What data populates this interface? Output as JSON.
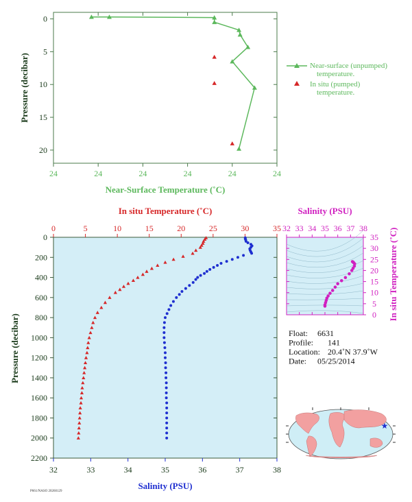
{
  "colors": {
    "green": "#5cb85c",
    "red": "#d62728",
    "blue": "#1f2fd0",
    "magenta": "#d020c0",
    "axis_dark": "#1a3a1a",
    "panel_bg": "#d4eef7",
    "land": "#f2a0a0",
    "ocean": "#cfeef6"
  },
  "footer_text": "P661/NASO 20260129",
  "chart_data": [
    {
      "id": "near-surface",
      "type": "line",
      "xlabel": "Near-Surface Temperature (˚C)",
      "ylabel": "Pressure (decibar)",
      "xticks": [
        "24",
        "24",
        "24",
        "24",
        "24",
        "24"
      ],
      "xlim": [
        23.4,
        24.4
      ],
      "ylim": [
        22,
        -1
      ],
      "yticks": [
        0,
        5,
        10,
        15,
        20
      ],
      "grid": false,
      "legend_position": "right",
      "series": [
        {
          "name": "Near-surface (unpumped) temperature.",
          "marker": "triangle",
          "color": "#5cb85c",
          "x": [
            23.57,
            23.65,
            24.12,
            24.12,
            24.23,
            24.235,
            24.27,
            24.2,
            24.3,
            24.23
          ],
          "y": [
            -0.3,
            -0.3,
            -0.2,
            0.5,
            1.7,
            2.4,
            4.3,
            6.5,
            10.5,
            19.8
          ]
        },
        {
          "name": "In situ (pumped) temperature.",
          "marker": "triangle",
          "color": "#d62728",
          "x": [
            24.12,
            24.12,
            24.2
          ],
          "y": [
            5.8,
            9.8,
            19.0
          ]
        }
      ]
    },
    {
      "id": "profile",
      "type": "scatter",
      "ylabel": "Pressure (decibar)",
      "ylim": [
        2200,
        0
      ],
      "yticks": [
        0,
        200,
        400,
        600,
        800,
        1000,
        1200,
        1400,
        1600,
        1800,
        2000,
        2200
      ],
      "top_xlabel": "In situ Temperature (˚C)",
      "top_xlim": [
        0,
        35
      ],
      "top_xticks": [
        0,
        5,
        10,
        15,
        20,
        25,
        30,
        35
      ],
      "bottom_xlabel": "Salinity (PSU)",
      "bottom_xlim": [
        32,
        38
      ],
      "bottom_xticks": [
        32,
        33,
        34,
        35,
        36,
        37,
        38
      ],
      "grid": false,
      "series": [
        {
          "name": "In situ Temperature (˚C)",
          "marker": "triangle",
          "color": "#d62728",
          "pressure": [
            5,
            20,
            40,
            60,
            80,
            100,
            130,
            160,
            190,
            220,
            250,
            280,
            310,
            340,
            370,
            400,
            430,
            460,
            490,
            520,
            550,
            600,
            650,
            700,
            750,
            800,
            850,
            900,
            950,
            1000,
            1050,
            1100,
            1150,
            1200,
            1250,
            1300,
            1350,
            1400,
            1450,
            1500,
            1550,
            1600,
            1650,
            1700,
            1750,
            1800,
            1850,
            1900,
            1950,
            2000
          ],
          "values": [
            23.9,
            23.7,
            23.5,
            23.4,
            23.2,
            23.0,
            22.3,
            21.8,
            20.3,
            18.8,
            17.5,
            16.3,
            15.4,
            14.6,
            14.0,
            13.2,
            12.5,
            11.7,
            11.0,
            10.4,
            9.7,
            8.8,
            8.1,
            7.5,
            6.9,
            6.5,
            6.2,
            6.0,
            5.8,
            5.6,
            5.45,
            5.35,
            5.25,
            5.1,
            5.0,
            4.9,
            4.8,
            4.7,
            4.6,
            4.5,
            4.45,
            4.35,
            4.3,
            4.2,
            4.15,
            4.1,
            4.05,
            4.0,
            3.95,
            3.9
          ]
        },
        {
          "name": "Salinity (PSU)",
          "marker": "circle",
          "color": "#1f2fd0",
          "pressure": [
            5,
            15,
            25,
            40,
            55,
            70,
            85,
            100,
            115,
            130,
            145,
            160,
            180,
            200,
            220,
            240,
            260,
            280,
            300,
            320,
            340,
            360,
            380,
            400,
            420,
            450,
            480,
            510,
            540,
            570,
            600,
            640,
            680,
            720,
            760,
            800,
            850,
            900,
            950,
            1000,
            1050,
            1100,
            1150,
            1200,
            1250,
            1300,
            1350,
            1400,
            1450,
            1500,
            1550,
            1600,
            1650,
            1700,
            1750,
            1800,
            1850,
            1900,
            1950,
            2000
          ],
          "values": [
            37.15,
            37.15,
            37.16,
            37.17,
            37.22,
            37.3,
            37.33,
            37.3,
            37.27,
            37.28,
            37.3,
            37.32,
            37.1,
            36.95,
            36.8,
            36.65,
            36.5,
            36.4,
            36.3,
            36.2,
            36.12,
            36.05,
            35.95,
            35.87,
            35.82,
            35.75,
            35.65,
            35.55,
            35.45,
            35.38,
            35.3,
            35.22,
            35.15,
            35.1,
            35.05,
            35.0,
            34.98,
            34.97,
            34.97,
            34.97,
            34.98,
            34.99,
            35.0,
            35.0,
            35.01,
            35.01,
            35.02,
            35.02,
            35.03,
            35.03,
            35.03,
            35.03,
            35.04,
            35.04,
            35.04,
            35.04,
            35.04,
            35.04,
            35.04,
            35.04
          ]
        }
      ]
    },
    {
      "id": "ts-diagram",
      "type": "scatter",
      "top_xlabel": "Salinity (PSU)",
      "xlim": [
        32,
        38
      ],
      "xticks": [
        32,
        33,
        34,
        35,
        36,
        37,
        38
      ],
      "ylabel": "In situ Temperature (˚C)",
      "ylim": [
        0,
        35
      ],
      "yticks": [
        0,
        5,
        10,
        15,
        20,
        25,
        30,
        35
      ],
      "grid": false,
      "series": [
        {
          "name": "T-S",
          "marker": "circle",
          "color": "#d020c0",
          "salinity": [
            35.0,
            35.0,
            35.05,
            35.1,
            35.15,
            35.25,
            35.4,
            35.6,
            35.8,
            36.0,
            36.3,
            36.6,
            36.9,
            37.1,
            37.2,
            37.3,
            37.32,
            37.25,
            37.2,
            37.15
          ],
          "temperature": [
            3.9,
            4.5,
            5.5,
            6.5,
            7.5,
            8.5,
            9.7,
            11.0,
            12.5,
            14.0,
            15.4,
            16.8,
            18.5,
            20.0,
            21.0,
            22.0,
            23.0,
            23.5,
            23.8,
            24.0
          ]
        }
      ]
    },
    {
      "id": "float-info",
      "type": "table",
      "rows": [
        {
          "label": "Float:",
          "value": "6631"
        },
        {
          "label": "Profile:",
          "value": "141"
        },
        {
          "label": "Location:",
          "value": "20.4˚N  37.9˚W"
        },
        {
          "label": "Date:",
          "value": "05/25/2014"
        }
      ]
    }
  ]
}
